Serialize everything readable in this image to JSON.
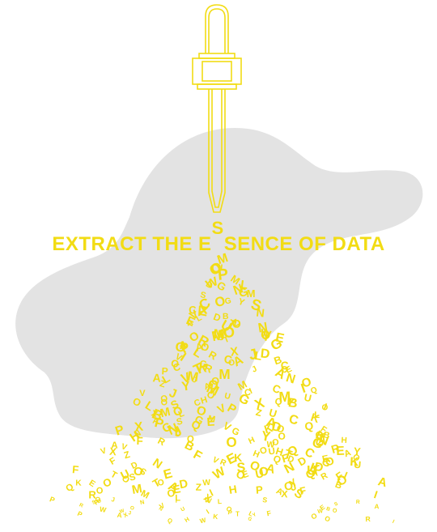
{
  "palette": {
    "accent": "#f2dc14",
    "blob": "#e3e3e3",
    "background": "#ffffff"
  },
  "icons": [
    "dropper-icon"
  ],
  "headline": {
    "before": "EXTRACT THE E",
    "drop_letter": "S",
    "after": "SENCE OF DATA"
  },
  "letter_pile": {
    "glyphs": "ABCDEFGHIJKLMNOPQRSTUVWXYZOOO",
    "rows": 34
  }
}
